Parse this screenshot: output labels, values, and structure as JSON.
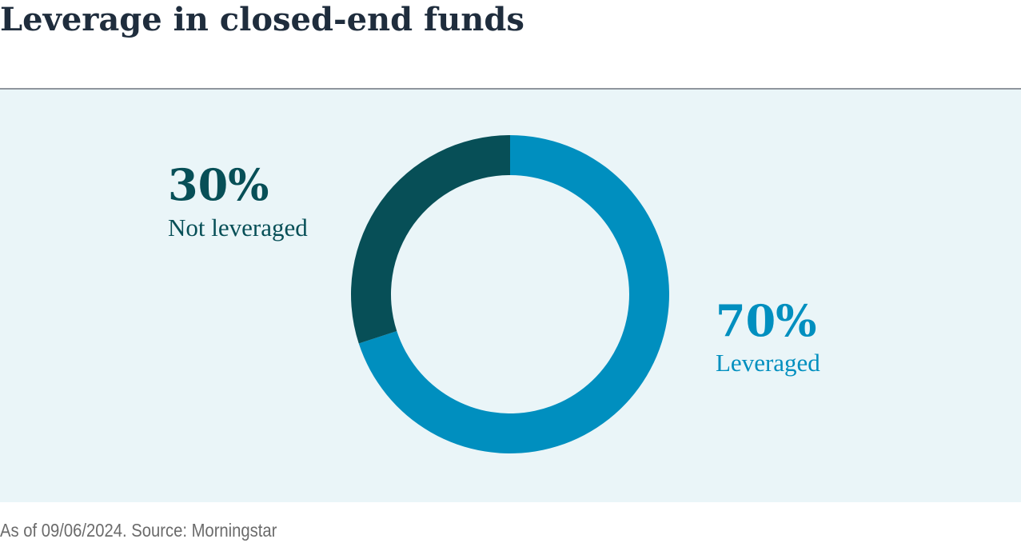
{
  "chart_data": {
    "type": "pie",
    "donut": true,
    "title": "Leverage in closed-end funds",
    "categories": [
      "Leveraged",
      "Not leveraged"
    ],
    "values": [
      70,
      30
    ],
    "value_labels": [
      "70%",
      "30%"
    ],
    "colors": [
      "#008fbf",
      "#074f57"
    ],
    "footnote": "As of 09/06/2024. Source: Morningstar"
  }
}
